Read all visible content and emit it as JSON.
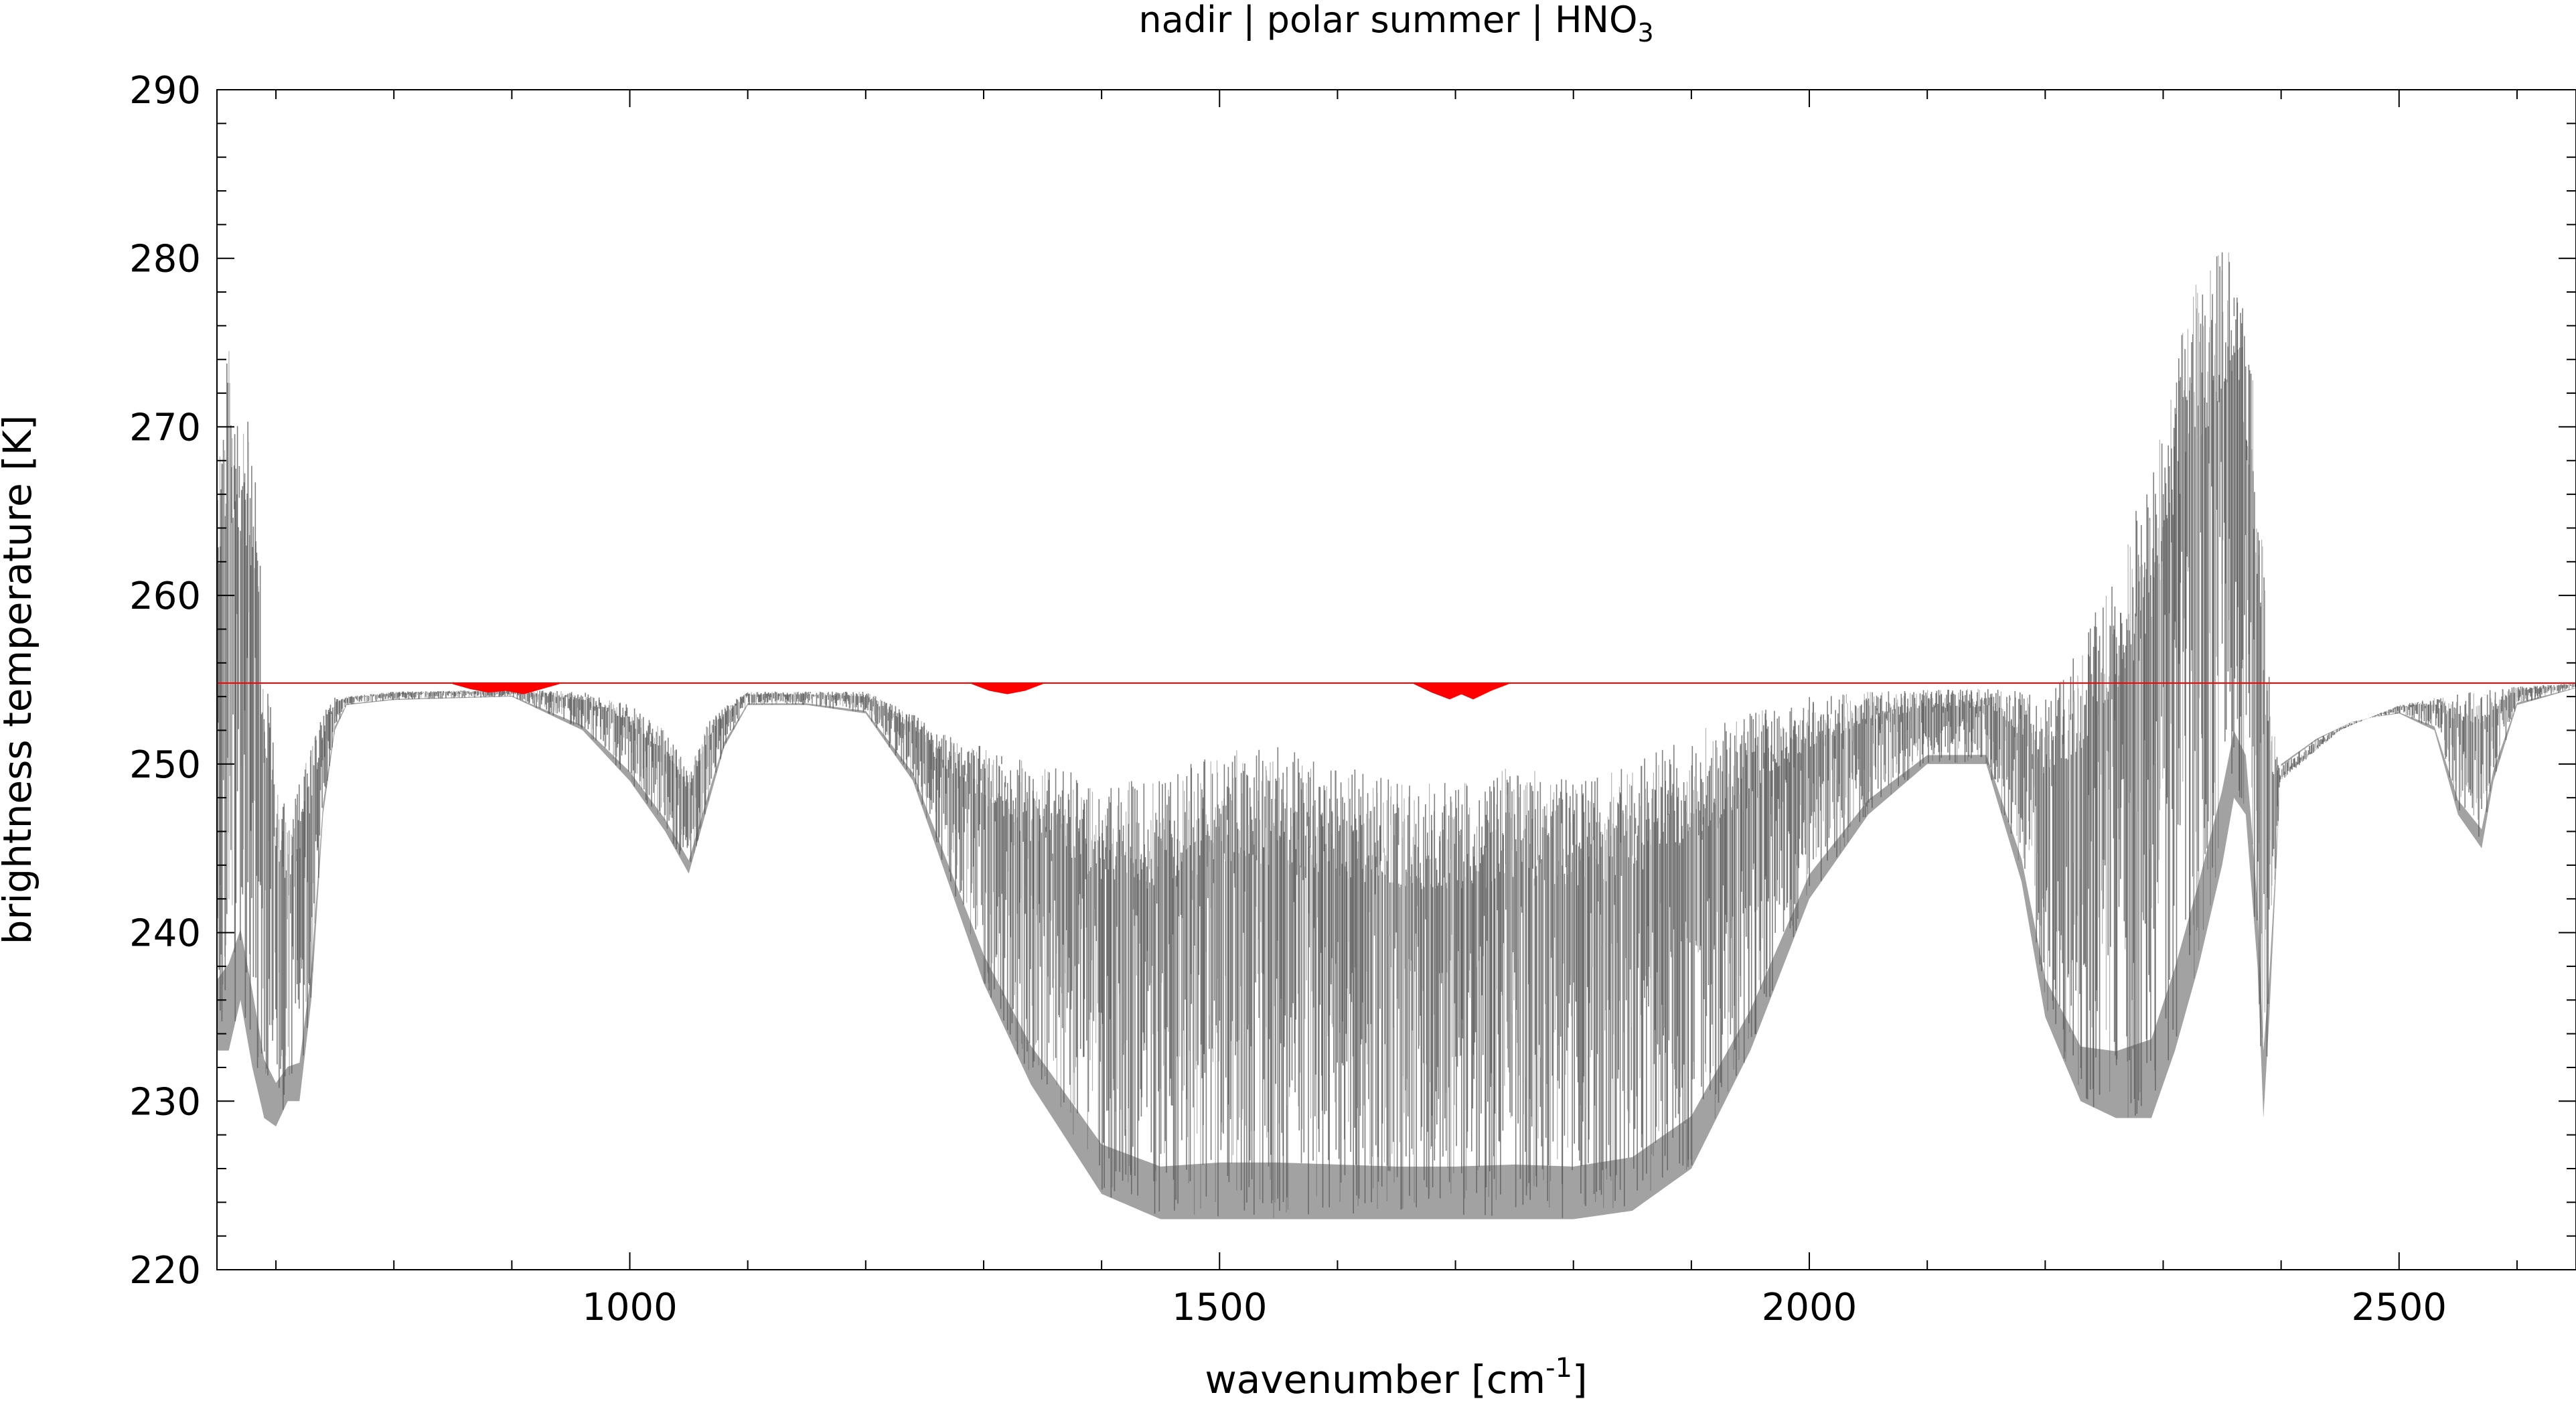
{
  "chart_data": {
    "type": "line",
    "title": "nadir | polar summer | HNO",
    "title_subscript": "3",
    "xlabel": "wavenumber [cm",
    "xlabel_superscript": "-1",
    "xlabel_suffix": "]",
    "ylabel": "brightness temperature [K]",
    "xlim": [
      650,
      2650
    ],
    "ylim": [
      220,
      290
    ],
    "xticks": [
      1000,
      1500,
      2000,
      2500
    ],
    "yticks": [
      220,
      230,
      240,
      250,
      260,
      270,
      280,
      290
    ],
    "grid": false,
    "colors": {
      "reference": "#ff0000",
      "spectrum_dark": "#555555",
      "spectrum_light": "#aaaaaa",
      "axes": "#000000"
    },
    "series": [
      {
        "style": "reference",
        "x": [
          650,
          2650
        ],
        "y": [
          254.8,
          254.8
        ]
      },
      {
        "style": "red_dips",
        "x": [
          850,
          865,
          880,
          895,
          910,
          925,
          940,
          1290,
          1305,
          1320,
          1335,
          1350,
          1665,
          1680,
          1695,
          1705,
          1715,
          1730,
          1745
        ],
        "y": [
          254.8,
          254.5,
          254.3,
          254.4,
          254.2,
          254.5,
          254.8,
          254.8,
          254.4,
          254.2,
          254.4,
          254.8,
          254.8,
          254.3,
          253.9,
          254.2,
          253.9,
          254.4,
          254.8
        ]
      },
      {
        "style": "envelope_top",
        "x": [
          650,
          660,
          670,
          680,
          690,
          700,
          710,
          720,
          730,
          740,
          750,
          760,
          800,
          900,
          960,
          1000,
          1030,
          1050,
          1070,
          1100,
          1200,
          1240,
          1260,
          1300,
          1350,
          1400,
          1450,
          1500,
          1550,
          1600,
          1650,
          1700,
          1750,
          1800,
          1850,
          1900,
          1950,
          2000,
          2050,
          2100,
          2150,
          2180,
          2200,
          2230,
          2260,
          2290,
          2310,
          2330,
          2350,
          2360,
          2375,
          2385,
          2392,
          2400,
          2450,
          2500,
          2550,
          2600,
          2650
        ],
        "y": [
          268,
          276,
          271,
          270,
          258,
          250,
          247,
          249,
          251,
          253,
          254,
          254,
          254.3,
          254.4,
          254.3,
          253.5,
          252,
          250,
          253,
          254.3,
          254.3,
          253,
          252,
          251,
          250,
          249,
          249,
          251,
          251,
          250,
          249,
          249,
          250,
          249,
          250,
          252,
          253,
          254,
          254.3,
          254.4,
          254.5,
          254.3,
          254,
          257,
          262,
          268,
          274,
          279,
          281,
          281,
          274,
          262,
          253,
          249,
          252,
          253.5,
          254.2,
          254.6,
          254.8
        ]
      },
      {
        "style": "envelope_bottom",
        "x": [
          650,
          660,
          670,
          680,
          690,
          700,
          710,
          720,
          730,
          740,
          750,
          760,
          800,
          900,
          960,
          1000,
          1030,
          1050,
          1060,
          1080,
          1100,
          1150,
          1200,
          1240,
          1260,
          1300,
          1340,
          1400,
          1450,
          1500,
          1550,
          1600,
          1650,
          1700,
          1750,
          1800,
          1850,
          1900,
          1950,
          2000,
          2050,
          2100,
          2150,
          2180,
          2200,
          2230,
          2260,
          2290,
          2310,
          2330,
          2350,
          2360,
          2370,
          2380,
          2385,
          2390,
          2400,
          2430,
          2460,
          2480,
          2500,
          2530,
          2550,
          2560,
          2570,
          2580,
          2600,
          2650
        ],
        "y": [
          233,
          233,
          236,
          232,
          229,
          228.5,
          230,
          230,
          236,
          247,
          252,
          253.5,
          253.8,
          254,
          252,
          249,
          246,
          243.5,
          246,
          251,
          253.5,
          253.5,
          253,
          249,
          245,
          237,
          231,
          224.5,
          223,
          223,
          223,
          223,
          223,
          223,
          223,
          223,
          223.5,
          226,
          233,
          242,
          247,
          250,
          250,
          243,
          235,
          230,
          229,
          229,
          233,
          238,
          244,
          248,
          247,
          238,
          229,
          235,
          250,
          251.5,
          252.5,
          252.8,
          253,
          252,
          247,
          246,
          245,
          249,
          253.5,
          254.5
        ]
      }
    ]
  }
}
